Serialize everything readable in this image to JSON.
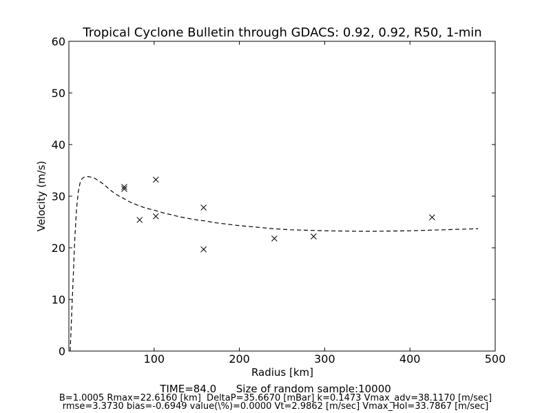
{
  "chart_data": {
    "type": "scatter",
    "title": "Tropical Cyclone Bulletin through GDACS: 0.92, 0.92, R50, 1-min",
    "xlabel": "Radius [km]",
    "ylabel": "Velocity (m/s)",
    "xlim": [
      0,
      500
    ],
    "ylim": [
      0,
      60
    ],
    "xticks": [
      100,
      200,
      300,
      400,
      500
    ],
    "yticks": [
      0,
      10,
      20,
      30,
      40,
      50,
      60
    ],
    "grid": false,
    "observations": {
      "marker": "x",
      "color": "#000000",
      "points": [
        {
          "x": 65,
          "y": 31.8
        },
        {
          "x": 65,
          "y": 31.4
        },
        {
          "x": 83,
          "y": 25.4
        },
        {
          "x": 102,
          "y": 33.2
        },
        {
          "x": 102,
          "y": 26.1
        },
        {
          "x": 158,
          "y": 27.8
        },
        {
          "x": 158,
          "y": 19.7
        },
        {
          "x": 241,
          "y": 21.8
        },
        {
          "x": 287,
          "y": 22.2
        },
        {
          "x": 426,
          "y": 25.9
        }
      ]
    },
    "fit_curve": {
      "style": "dashed",
      "color": "#000000",
      "x": [
        1.5,
        3,
        5,
        7,
        9,
        11,
        13,
        15,
        17,
        19,
        22.6,
        26,
        30,
        35,
        40,
        45,
        50,
        55,
        60,
        65,
        70,
        80,
        90,
        100,
        110,
        120,
        130,
        140,
        150,
        160,
        170,
        180,
        190,
        200,
        220,
        240,
        260,
        280,
        300,
        320,
        340,
        360,
        380,
        400,
        420,
        440,
        460,
        480
      ],
      "y": [
        0,
        6,
        14,
        22,
        27.5,
        30.8,
        32.5,
        33.3,
        33.6,
        33.75,
        33.79,
        33.7,
        33.5,
        33.0,
        32.4,
        31.7,
        31.0,
        30.4,
        29.9,
        29.5,
        29.0,
        28.3,
        27.7,
        27.3,
        26.8,
        26.4,
        26.0,
        25.7,
        25.4,
        25.2,
        24.9,
        24.7,
        24.5,
        24.3,
        24.0,
        23.7,
        23.5,
        23.4,
        23.3,
        23.25,
        23.2,
        23.2,
        23.25,
        23.3,
        23.4,
        23.5,
        23.6,
        23.7
      ]
    }
  },
  "footer": {
    "line1": "TIME=84.0      Size of random sample:10000",
    "line2": "B=1.0005 Rmax=22.6160 [km]  DeltaP=35.6670 [mBar] k=0.1473 Vmax_adv=38.1170 [m/sec]",
    "line3": "rmse=3.3730 bias=-0.6949 value(\\%)=0.0000 Vt=2.9862 [m/sec] Vmax_Hol=33.7867 [m/sec]"
  }
}
